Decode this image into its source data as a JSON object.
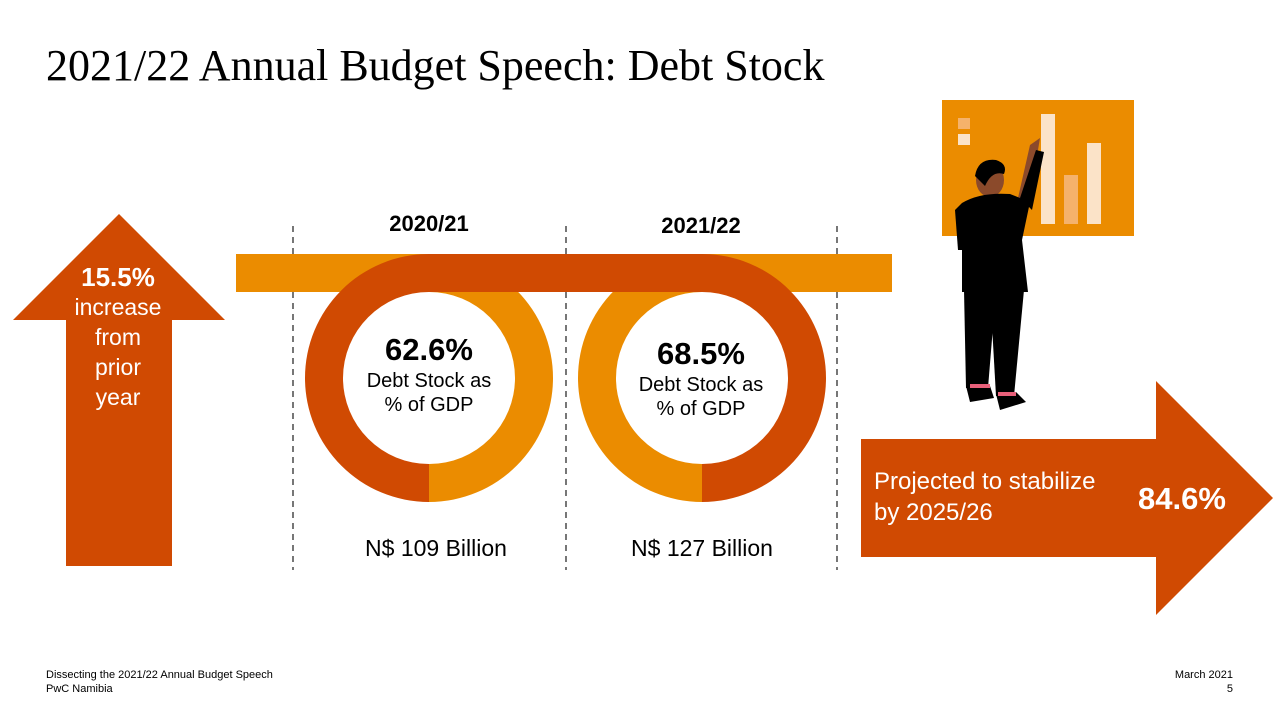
{
  "slide": {
    "title": "2021/22 Annual Budget Speech: Debt Stock",
    "colors": {
      "dark_orange": "#D04A02",
      "orange": "#EB8C00",
      "light_orange": "#F5B26B"
    }
  },
  "increase": {
    "value": "15.5%",
    "lines": [
      "increase",
      "from",
      "prior",
      "year"
    ]
  },
  "years": [
    {
      "label": "2020/21",
      "percent": "62.6%",
      "desc_line1": "Debt Stock as",
      "desc_line2": "% of GDP",
      "amount": "N$ 109 Billion"
    },
    {
      "label": "2021/22",
      "percent": "68.5%",
      "desc_line1": "Debt Stock as",
      "desc_line2": "% of GDP",
      "amount": "N$ 127 Billion"
    }
  ],
  "projection": {
    "line1": "Projected to stabilize",
    "line2": "by 2025/26",
    "value": "84.6%"
  },
  "footer": {
    "left_line1": "Dissecting the 2021/22 Annual Budget Speech",
    "left_line2": "PwC Namibia",
    "date": "March 2021",
    "page": "5"
  }
}
